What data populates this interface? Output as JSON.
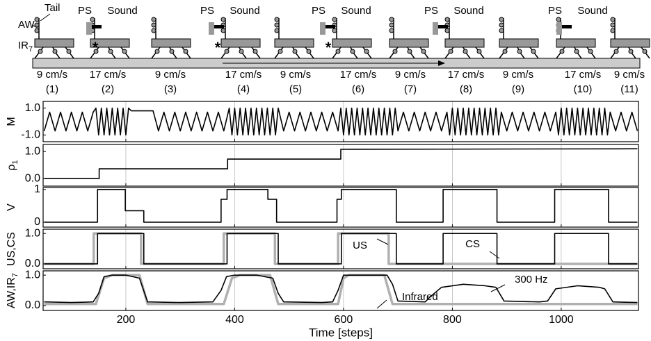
{
  "illustration": {
    "tail": "Tail",
    "aw": "AW",
    "ir": "IR",
    "ir_sub": "7",
    "stimuli": [
      {
        "ps": "PS",
        "sound": "Sound"
      },
      {
        "ps": "PS",
        "sound": "Sound"
      },
      {
        "ps": "PS",
        "sound": "Sound"
      },
      {
        "ps": "PS",
        "sound": "Sound"
      },
      {
        "ps": "PS",
        "sound": "Sound"
      }
    ],
    "markers": [
      "*",
      "*",
      "*"
    ],
    "segments": [
      {
        "speed": "9 cm/s",
        "label": "(1)"
      },
      {
        "speed": "17 cm/s",
        "label": "(2)"
      },
      {
        "speed": "9 cm/s",
        "label": "(3)"
      },
      {
        "speed": "17 cm/s",
        "label": "(4)"
      },
      {
        "speed": "9 cm/s",
        "label": "(5)"
      },
      {
        "speed": "17 cm/s",
        "label": "(6)"
      },
      {
        "speed": "9 cm/s",
        "label": "(7)"
      },
      {
        "speed": "17 cm/s",
        "label": "(8)"
      },
      {
        "speed": "9 cm/s",
        "label": "(9)"
      },
      {
        "speed": "17 cm/s",
        "label": "(10)"
      },
      {
        "speed": "9 cm/s",
        "label": "(11)"
      }
    ]
  },
  "chart_data": [
    {
      "type": "line",
      "ylabel": "M",
      "xlim": [
        48,
        1142
      ],
      "ylim": [
        -1.5,
        1.5
      ],
      "yticks": [
        {
          "value": -1,
          "label": "-1.0"
        },
        {
          "value": 1,
          "label": "1.0"
        }
      ],
      "series": [
        {
          "color": "#000000",
          "x": [
            50,
            60,
            70,
            80,
            90,
            100,
            110,
            120,
            130,
            140,
            145,
            150,
            155,
            160,
            165,
            170,
            175,
            180,
            185,
            190,
            195,
            200,
            205,
            210,
            250,
            260,
            270,
            280,
            290,
            300,
            310,
            320,
            330,
            340,
            350,
            360,
            370,
            380,
            390,
            395,
            400,
            405,
            410,
            415,
            420,
            425,
            430,
            435,
            440,
            445,
            450,
            455,
            460,
            465,
            470,
            475,
            480,
            490,
            500,
            510,
            520,
            530,
            540,
            550,
            560,
            570,
            580,
            590,
            595,
            600,
            605,
            610,
            615,
            620,
            625,
            630,
            635,
            640,
            645,
            650,
            655,
            660,
            665,
            670,
            675,
            680,
            685,
            690,
            695,
            700,
            710,
            720,
            730,
            740,
            750,
            760,
            770,
            780,
            790,
            795,
            800,
            805,
            810,
            815,
            820,
            825,
            830,
            835,
            840,
            845,
            850,
            855,
            860,
            865,
            870,
            875,
            880,
            885,
            890,
            900,
            910,
            920,
            930,
            940,
            950,
            960,
            970,
            980,
            990,
            995,
            1000,
            1005,
            1010,
            1015,
            1020,
            1025,
            1030,
            1035,
            1040,
            1045,
            1050,
            1055,
            1060,
            1065,
            1070,
            1075,
            1080,
            1085,
            1090,
            1100,
            1110,
            1120,
            1130,
            1140
          ],
          "values": [
            -0.7,
            0.7,
            -0.7,
            0.7,
            -0.7,
            0.7,
            -0.7,
            0.7,
            -0.7,
            0.7,
            1,
            -1,
            1,
            -1,
            1,
            -1,
            1,
            -1,
            1,
            -1,
            1,
            -1,
            1,
            0.8,
            0.8,
            -0.7,
            0.7,
            -0.7,
            0.7,
            -0.7,
            0.7,
            -0.7,
            0.7,
            -0.7,
            0.7,
            -0.7,
            0.7,
            -0.7,
            1,
            -1,
            1,
            -1,
            1,
            -1,
            1,
            -1,
            1,
            -1,
            1,
            -1,
            1,
            -1,
            1,
            -1,
            1,
            -1,
            1,
            -0.7,
            0.7,
            -0.7,
            0.7,
            -0.7,
            0.7,
            -0.7,
            0.7,
            -0.7,
            0.7,
            -0.7,
            1,
            -1,
            1,
            -1,
            1,
            -1,
            1,
            -1,
            1,
            -1,
            1,
            -1,
            1,
            -1,
            1,
            -1,
            1,
            -1,
            1,
            -1,
            1,
            -0.7,
            0.7,
            -0.7,
            0.7,
            -0.7,
            0.7,
            -0.7,
            0.7,
            -0.7,
            0.7,
            -1,
            1,
            -1,
            1,
            -1,
            1,
            -1,
            1,
            -1,
            1,
            -1,
            1,
            -1,
            1,
            -1,
            1,
            -1,
            1,
            -1,
            0.7,
            -0.7,
            0.7,
            -0.7,
            0.7,
            -0.7,
            0.7,
            -0.7,
            0.7,
            -0.7,
            0.7,
            -1,
            1,
            -1,
            1,
            -1,
            1,
            -1,
            1,
            -1,
            1,
            -1,
            1,
            -1,
            1,
            -1,
            1,
            -1,
            1,
            -1,
            0.7,
            -0.7,
            0.7,
            -0.7,
            0.7,
            -0.7
          ]
        }
      ]
    },
    {
      "type": "line",
      "ylabel": "ρ",
      "ylabel_sub": "1",
      "xlim": [
        48,
        1142
      ],
      "ylim": [
        -0.28,
        1.26
      ],
      "yticks": [
        {
          "value": 0,
          "label": "0.0"
        },
        {
          "value": 1,
          "label": "1.0"
        }
      ],
      "series": [
        {
          "color": "#000000",
          "x": [
            50,
            151,
            151,
            387,
            387,
            595,
            595,
            1140
          ],
          "values": [
            0,
            0,
            0.36,
            0.36,
            0.72,
            0.72,
            1.08,
            1.1
          ]
        }
      ]
    },
    {
      "type": "line",
      "ylabel": "V",
      "xlim": [
        48,
        1142
      ],
      "ylim": [
        -0.15,
        1.06
      ],
      "yticks": [
        0,
        1
      ],
      "series": [
        {
          "color": "#000000",
          "x": [
            50,
            148,
            148,
            199,
            199,
            233,
            233,
            375,
            375,
            386,
            386,
            461,
            461,
            477,
            477,
            588,
            588,
            596,
            596,
            697,
            697,
            783,
            783,
            882,
            882,
            988,
            988,
            1087,
            1087,
            1140
          ],
          "values": [
            0,
            0,
            1,
            1,
            0.35,
            0.35,
            0,
            0,
            0.7,
            0.7,
            1,
            1,
            0.7,
            0.7,
            0,
            0,
            0.7,
            0.7,
            1,
            1,
            0,
            0,
            1,
            1,
            0,
            0,
            1,
            1,
            0,
            0
          ]
        }
      ]
    },
    {
      "type": "line",
      "ylabel": "US,CS",
      "xlim": [
        48,
        1142
      ],
      "ylim": [
        -0.16,
        1.14
      ],
      "yticks": [
        {
          "value": 0,
          "label": "0.0"
        },
        {
          "value": 1,
          "label": "1.0"
        }
      ],
      "annotations": [
        "US",
        "CS"
      ],
      "series": [
        {
          "color": "#b0b0b0",
          "x": [
            50,
            141,
            141,
            228,
            228,
            380,
            380,
            474,
            474,
            590,
            590,
            683,
            683,
            1140
          ],
          "values": [
            0,
            0,
            1,
            1,
            0,
            0,
            1,
            1,
            0,
            0,
            1,
            1,
            0,
            0
          ]
        },
        {
          "color": "#000000",
          "x": [
            50,
            148,
            148,
            233,
            233,
            386,
            386,
            480,
            480,
            596,
            596,
            697,
            697,
            783,
            783,
            882,
            882,
            988,
            988,
            1087,
            1087,
            1140
          ],
          "values": [
            0,
            0,
            1,
            1,
            0,
            0,
            1,
            1,
            0,
            0,
            1,
            1,
            0,
            0,
            1,
            1,
            0,
            0,
            1,
            1,
            0,
            0
          ]
        }
      ]
    },
    {
      "type": "line",
      "ylabel": "AW,IR",
      "ylabel_sub": "7",
      "xlabel": "Time [steps]",
      "xlim": [
        48,
        1142
      ],
      "ylim": [
        -0.16,
        1.14
      ],
      "xticks": [
        200,
        400,
        600,
        800,
        1000
      ],
      "grid": true,
      "yticks": [
        {
          "value": 0,
          "label": "0.0"
        },
        {
          "value": 1,
          "label": "1.0"
        }
      ],
      "annotations": [
        "Infrared",
        "300 Hz"
      ],
      "series": [
        {
          "color": "#b0b0b0",
          "x": [
            50,
            145,
            160,
            175,
            225,
            240,
            380,
            395,
            410,
            465,
            480,
            590,
            600,
            610,
            675,
            690,
            1140
          ],
          "values": [
            0.05,
            0.05,
            0.9,
            1.0,
            1.0,
            0.05,
            0.05,
            0.9,
            1.0,
            1.0,
            0.05,
            0.05,
            0.9,
            1.0,
            1.0,
            0.05,
            0.05
          ]
        },
        {
          "color": "#000000",
          "x": [
            50,
            100,
            140,
            150,
            160,
            175,
            200,
            225,
            240,
            300,
            360,
            375,
            385,
            400,
            440,
            470,
            480,
            490,
            560,
            580,
            590,
            600,
            680,
            690,
            700,
            750,
            760,
            780,
            820,
            860,
            880,
            895,
            960,
            975,
            990,
            1030,
            1070,
            1080,
            1095,
            1140
          ],
          "values": [
            0.12,
            0.1,
            0.12,
            0.4,
            0.95,
            1.0,
            1.0,
            0.9,
            0.12,
            0.1,
            0.12,
            0.5,
            0.95,
            1.0,
            1.0,
            0.9,
            0.4,
            0.12,
            0.1,
            0.12,
            0.5,
            1.0,
            1.0,
            0.7,
            0.15,
            0.12,
            0.3,
            0.6,
            0.7,
            0.65,
            0.6,
            0.15,
            0.12,
            0.15,
            0.55,
            0.65,
            0.6,
            0.55,
            0.12,
            0.1
          ]
        }
      ]
    }
  ]
}
